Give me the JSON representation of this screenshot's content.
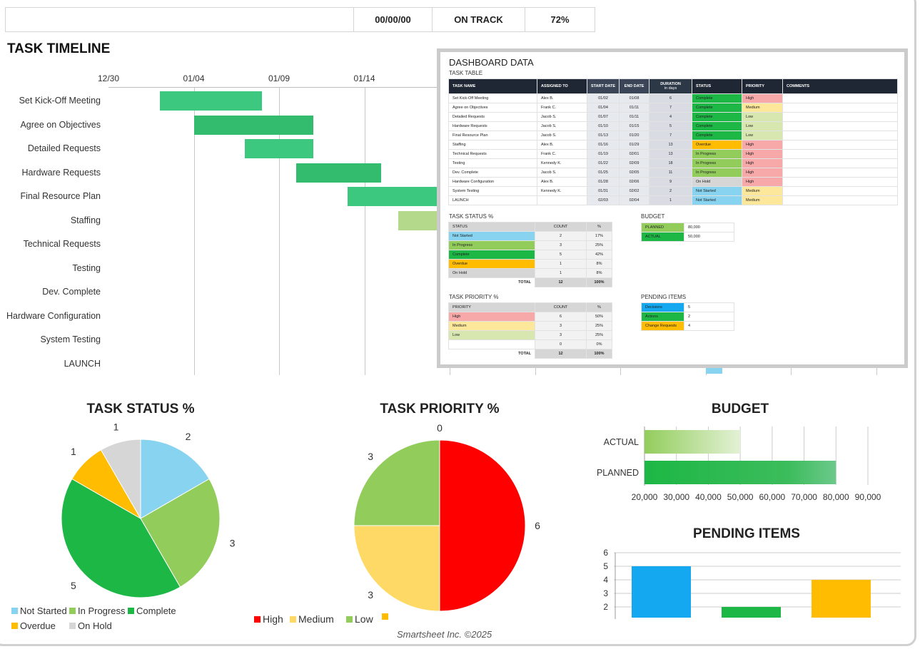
{
  "header": {
    "date": "00/00/00",
    "project_status": "ON TRACK",
    "percent_complete": "72%"
  },
  "timeline": {
    "title": "TASK TIMELINE",
    "ticks": [
      "12/30",
      "01/04",
      "01/09",
      "01/14"
    ],
    "tasks": [
      {
        "name": "Set Kick-Off Meeting",
        "start": "01/02",
        "end": "01/08",
        "color": "#3cc87f"
      },
      {
        "name": "Agree on Objectives",
        "start": "01/04",
        "end": "01/11",
        "color": "#33bb6e"
      },
      {
        "name": "Detailed Requests",
        "start": "01/07",
        "end": "01/11",
        "color": "#3cc87f"
      },
      {
        "name": "Hardware Requests",
        "start": "01/10",
        "end": "01/15",
        "color": "#33bb6e"
      },
      {
        "name": "Final Resource Plan",
        "start": "01/13",
        "end": "01/20",
        "color": "#3cc87f"
      },
      {
        "name": "Staffing",
        "start": "01/16",
        "end": "01/29",
        "color": "#b5d98a"
      },
      {
        "name": "Technical Requests",
        "start": "01/19",
        "end": "02/01",
        "color": "#92cd5c"
      },
      {
        "name": "Testing",
        "start": "01/22",
        "end": "02/09",
        "color": "#92cd5c"
      },
      {
        "name": "Dev. Complete",
        "start": "01/25",
        "end": "02/05",
        "color": "#92cd5c"
      },
      {
        "name": "Hardware Configuration",
        "start": "01/28",
        "end": "02/06",
        "color": "#d6d6d6"
      },
      {
        "name": "System Testing",
        "start": "01/31",
        "end": "02/02",
        "color": "#87d3f0"
      },
      {
        "name": "LAUNCH",
        "start": "02/03",
        "end": "02/04",
        "color": "#87d3f0"
      }
    ]
  },
  "dashboard": {
    "title": "DASHBOARD DATA",
    "task_table_title": "TASK TABLE",
    "columns": [
      "TASK NAME",
      "ASSIGNED TO",
      "START DATE",
      "END DATE",
      "DURATION",
      "in days",
      "STATUS",
      "PRIORITY",
      "COMMENTS"
    ],
    "rows": [
      [
        "Set Kick-Off Meeting",
        "Alex B.",
        "01/02",
        "01/08",
        "6",
        "Complete",
        "High"
      ],
      [
        "Agree on Objectives",
        "Frank C.",
        "01/04",
        "01/11",
        "7",
        "Complete",
        "Medium"
      ],
      [
        "Detailed Requests",
        "Jacob S.",
        "01/07",
        "01/11",
        "4",
        "Complete",
        "Low"
      ],
      [
        "Hardware Requests",
        "Jacob S.",
        "01/10",
        "01/15",
        "5",
        "Complete",
        "Low"
      ],
      [
        "Final Resource Plan",
        "Jacob S.",
        "01/13",
        "01/20",
        "7",
        "Complete",
        "Low"
      ],
      [
        "Staffing",
        "Alex B.",
        "01/16",
        "01/29",
        "13",
        "Overdue",
        "High"
      ],
      [
        "Technical Requests",
        "Frank C.",
        "01/19",
        "02/01",
        "13",
        "In Progress",
        "High"
      ],
      [
        "Testing",
        "Kennedy K.",
        "01/22",
        "02/09",
        "18",
        "In Progress",
        "High"
      ],
      [
        "Dev. Complete",
        "Jacob S.",
        "01/25",
        "02/05",
        "11",
        "In Progress",
        "High"
      ],
      [
        "Hardware Configuration",
        "Alex B.",
        "01/28",
        "02/06",
        "9",
        "On Hold",
        "High"
      ],
      [
        "System Testing",
        "Kennedy K.",
        "01/31",
        "02/02",
        "2",
        "Not Started",
        "Medium"
      ],
      [
        "LAUNCH",
        "",
        "02/03",
        "02/04",
        "1",
        "Not Started",
        "Medium"
      ]
    ],
    "status_title": "TASK STATUS %",
    "status_headers": [
      "STATUS",
      "COUNT",
      "%"
    ],
    "status_rows": [
      [
        "Not Started",
        "2",
        "17%"
      ],
      [
        "In Progress",
        "3",
        "25%"
      ],
      [
        "Complete",
        "5",
        "42%"
      ],
      [
        "Overdue",
        "1",
        "8%"
      ],
      [
        "On Hold",
        "1",
        "8%"
      ]
    ],
    "status_total": [
      "TOTAL",
      "12",
      "100%"
    ],
    "priority_title": "TASK PRIORITY %",
    "priority_headers": [
      "PRIORITY",
      "COUNT",
      "%"
    ],
    "priority_rows": [
      [
        "High",
        "6",
        "50%"
      ],
      [
        "Medium",
        "3",
        "25%"
      ],
      [
        "Low",
        "3",
        "25%"
      ],
      [
        "",
        "0",
        "0%"
      ]
    ],
    "priority_total": [
      "TOTAL",
      "12",
      "100%"
    ],
    "budget_title": "BUDGET",
    "budget_rows": [
      [
        "PLANNED",
        "80,000"
      ],
      [
        "ACTUAL",
        "50,000"
      ]
    ],
    "pending_title": "PENDING ITEMS",
    "pending_rows": [
      [
        "Decisions",
        "5"
      ],
      [
        "Actions",
        "2"
      ],
      [
        "Change Requests",
        "4"
      ]
    ]
  },
  "colors": {
    "Not Started": "#87d3f0",
    "In Progress": "#92cd5c",
    "Complete": "#1db745",
    "Overdue": "#ffbc00",
    "On Hold": "#d6d6d6",
    "High": "#f7a8a8",
    "Medium": "#fde79a",
    "Low": "#d8e6b0"
  },
  "chart_data": [
    {
      "type": "pie",
      "title": "TASK STATUS %",
      "categories": [
        "Not Started",
        "In Progress",
        "Complete",
        "Overdue",
        "On Hold"
      ],
      "values": [
        2,
        3,
        5,
        1,
        1
      ],
      "colors": [
        "#87d3f0",
        "#92cd5c",
        "#1db745",
        "#ffbc00",
        "#d6d6d6"
      ],
      "legend": "bottom"
    },
    {
      "type": "pie",
      "title": "TASK PRIORITY %",
      "categories": [
        "High",
        "Medium",
        "Low",
        ""
      ],
      "values": [
        6,
        3,
        3,
        0
      ],
      "colors": [
        "#ff0000",
        "#ffd966",
        "#92cd5c",
        "#ffbc00"
      ],
      "legend": "bottom"
    },
    {
      "type": "bar",
      "orientation": "horizontal",
      "title": "BUDGET",
      "categories": [
        "ACTUAL",
        "PLANNED"
      ],
      "values": [
        50000,
        80000
      ],
      "xlim": [
        20000,
        90000
      ],
      "ticks": [
        "20,000",
        "30,000",
        "40,000",
        "50,000",
        "60,000",
        "70,000",
        "80,000",
        "90,000"
      ],
      "colors": [
        "#92cd5c",
        "#1db745"
      ]
    },
    {
      "type": "bar",
      "title": "PENDING ITEMS",
      "categories": [
        "Decisions",
        "Actions",
        "Change Requests"
      ],
      "values": [
        5,
        2,
        4
      ],
      "ylim": [
        1,
        6
      ],
      "ticks": [
        "2",
        "3",
        "4",
        "5",
        "6"
      ],
      "colors": [
        "#13a8ef",
        "#1db745",
        "#ffbc00"
      ]
    }
  ],
  "footer": "Smartsheet Inc. ©2025"
}
